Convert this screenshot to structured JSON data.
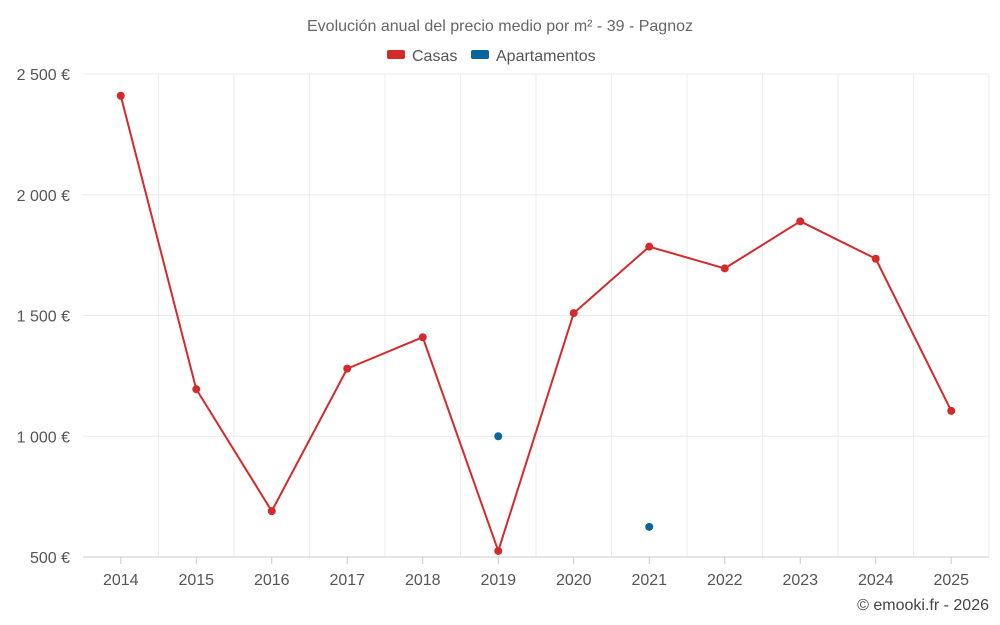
{
  "chart_data": {
    "type": "line",
    "title": "Evolución anual del precio medio por m² - 39 - Pagnoz",
    "x": [
      "2014",
      "2015",
      "2016",
      "2017",
      "2018",
      "2019",
      "2020",
      "2021",
      "2022",
      "2023",
      "2024",
      "2025"
    ],
    "series": [
      {
        "name": "Casas",
        "color": "#d42a2a",
        "values": [
          2410,
          1195,
          690,
          1280,
          1410,
          525,
          1510,
          1785,
          1695,
          1890,
          1735,
          1105
        ]
      },
      {
        "name": "Apartamentos",
        "color": "#0a6699",
        "values": [
          null,
          null,
          null,
          null,
          null,
          1000,
          null,
          625,
          null,
          null,
          null,
          null
        ]
      }
    ],
    "y_ticks": [
      500,
      1000,
      1500,
      2000,
      2500
    ],
    "y_tick_labels": [
      "500 €",
      "1 000 €",
      "1 500 €",
      "2 000 €",
      "2 500 €"
    ],
    "ylim": [
      500,
      2500
    ],
    "grid": true,
    "legend_position": "top-center"
  },
  "credit": "© emooki.fr - 2026"
}
